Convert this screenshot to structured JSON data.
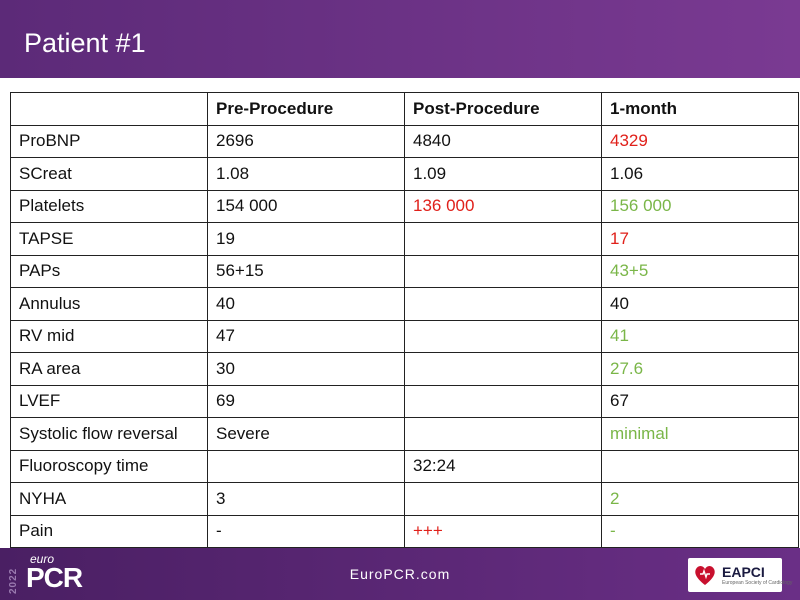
{
  "header": {
    "title": "Patient #1"
  },
  "table": {
    "columns": [
      "",
      "Pre-Procedure",
      "Post-Procedure",
      "1-month"
    ],
    "rows": [
      {
        "label": "ProBNP",
        "pre": "2696",
        "post": "4840",
        "month": "4329",
        "pre_color": "",
        "post_color": "",
        "month_color": "red"
      },
      {
        "label": "SCreat",
        "pre": "1.08",
        "post": "1.09",
        "month": "1.06",
        "pre_color": "",
        "post_color": "",
        "month_color": ""
      },
      {
        "label": "Platelets",
        "pre": "154 000",
        "post": "136 000",
        "month": "156 000",
        "pre_color": "",
        "post_color": "red",
        "month_color": "green"
      },
      {
        "label": "TAPSE",
        "pre": "19",
        "post": "",
        "month": "17",
        "pre_color": "",
        "post_color": "",
        "month_color": "red"
      },
      {
        "label": "PAPs",
        "pre": "56+15",
        "post": "",
        "month": "43+5",
        "pre_color": "",
        "post_color": "",
        "month_color": "green"
      },
      {
        "label": "Annulus",
        "pre": "40",
        "post": "",
        "month": "40",
        "pre_color": "",
        "post_color": "",
        "month_color": ""
      },
      {
        "label": "RV mid",
        "pre": "47",
        "post": "",
        "month": "41",
        "pre_color": "",
        "post_color": "",
        "month_color": "green"
      },
      {
        "label": "RA area",
        "pre": "30",
        "post": "",
        "month": "27.6",
        "pre_color": "",
        "post_color": "",
        "month_color": "green"
      },
      {
        "label": "LVEF",
        "pre": "69",
        "post": "",
        "month": "67",
        "pre_color": "",
        "post_color": "",
        "month_color": ""
      },
      {
        "label": "Systolic flow reversal",
        "pre": "Severe",
        "post": "",
        "month": "minimal",
        "pre_color": "",
        "post_color": "",
        "month_color": "green"
      },
      {
        "label": "Fluoroscopy time",
        "pre": "",
        "post": "32:24",
        "month": "",
        "pre_color": "",
        "post_color": "",
        "month_color": ""
      },
      {
        "label": "NYHA",
        "pre": "3",
        "post": "",
        "month": "2",
        "pre_color": "",
        "post_color": "",
        "month_color": "green"
      },
      {
        "label": "Pain",
        "pre": "-",
        "post": "+++",
        "month": "-",
        "pre_color": "",
        "post_color": "red",
        "month_color": "green"
      }
    ]
  },
  "footer": {
    "logo_year": "2022",
    "logo_euro": "euro",
    "logo_pcr": "PCR",
    "url": "EuroPCR.com",
    "eapci": "EAPCI",
    "eapci_sub": "European Society of Cardiology"
  },
  "colors": {
    "header_bg": "#6a3088",
    "footer_bg": "#5a2878",
    "red": "#e0201a",
    "green": "#7ab648"
  }
}
